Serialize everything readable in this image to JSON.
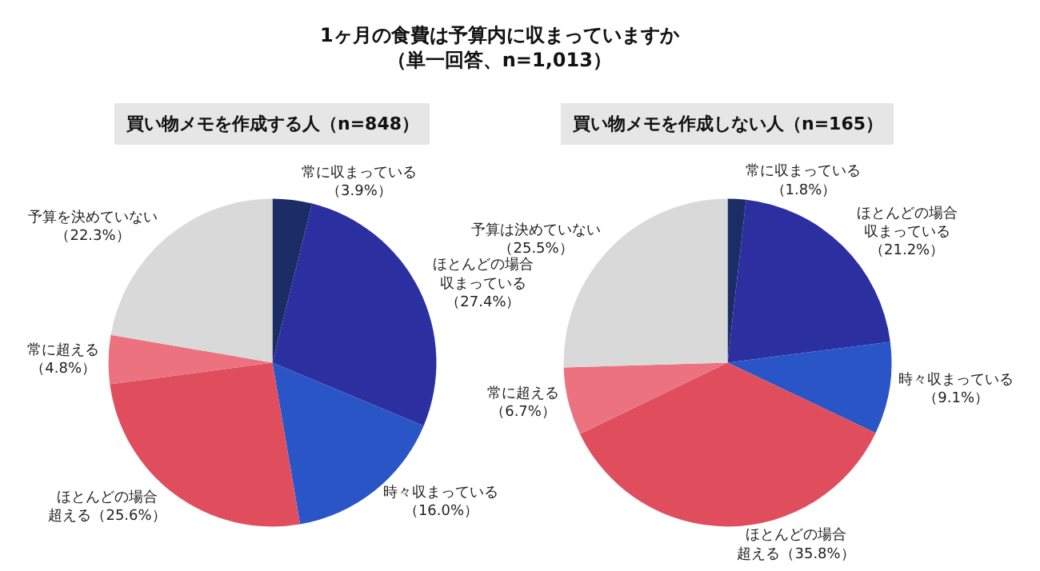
{
  "chart_data": [
    {
      "type": "other",
      "title": "1ヶ月の食費は予算内に収まっていますか",
      "subtitle": "（単一回答、n=1,013）"
    },
    {
      "type": "pie",
      "title": "買い物メモを作成する人（n=848）",
      "categories": [
        "常に収まっている",
        "ほとんどの場合収まっている",
        "時々収まっている",
        "ほとんどの場合超える",
        "常に超える",
        "予算を決めていない"
      ],
      "values": [
        3.9,
        27.4,
        16.0,
        25.6,
        4.8,
        22.3
      ],
      "value_labels": [
        "\n（3.9%）",
        "\n（27.4%）",
        "\n（16.0%）",
        "（25.6%）",
        "\n（4.8%）",
        "\n（22.3%）"
      ],
      "colors": [
        "#1c2d66",
        "#2b2fa0",
        "#2a55c6",
        "#e04e5e",
        "#ec727f",
        "#d9d9d9"
      ],
      "legend": false
    },
    {
      "type": "pie",
      "title": "買い物メモを作成しない人（n=165）",
      "categories": [
        "常に収まっている",
        "ほとんどの場合収まっている",
        "時々収まっている",
        "ほとんどの場合超える",
        "常に超える",
        "予算は決めていない"
      ],
      "values": [
        1.8,
        21.2,
        9.1,
        35.8,
        6.7,
        25.5
      ],
      "value_labels": [
        "\n（1.8%）",
        "\n（21.2%）",
        "\n（9.1%）",
        "（35.8%）",
        "\n（6.7%）",
        "\n（25.5%）"
      ],
      "colors": [
        "#1c2d66",
        "#2b2fa0",
        "#2a55c6",
        "#e04e5e",
        "#ec727f",
        "#d9d9d9"
      ],
      "legend": false
    }
  ]
}
